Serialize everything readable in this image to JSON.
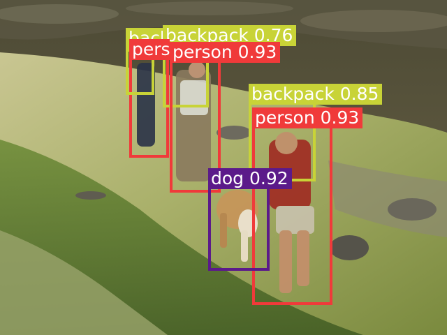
{
  "colors": {
    "person": "#f03a3a",
    "backpack": "#c8d337",
    "dog": "#5b1a8a",
    "label_text": "#ffffff"
  },
  "detections": [
    {
      "cls": "backpack",
      "text": "backpack 0.76"
    },
    {
      "cls": "backpack",
      "text": "backpack 0.31"
    },
    {
      "cls": "person",
      "text": "person 0.91"
    },
    {
      "cls": "person",
      "text": "person 0.93"
    },
    {
      "cls": "backpack",
      "text": "backpack 0.85"
    },
    {
      "cls": "person",
      "text": "person 0.93"
    },
    {
      "cls": "dog",
      "text": "dog 0.92"
    }
  ]
}
